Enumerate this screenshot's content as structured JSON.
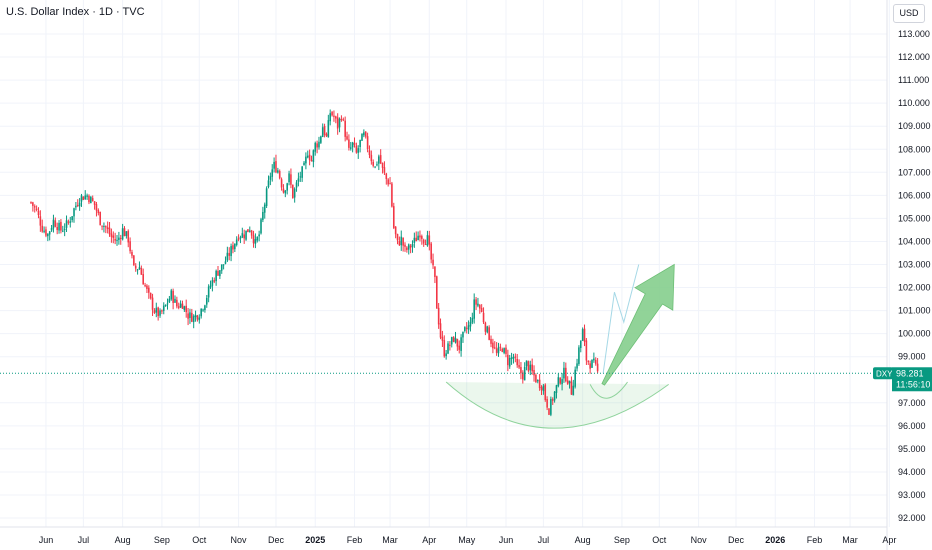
{
  "header": {
    "title": "U.S. Dollar Index · 1D · TVC",
    "currency": "USD"
  },
  "price_tag": {
    "symbol": "DXY",
    "price": "98.281",
    "countdown": "11:56:10",
    "color": "#089981"
  },
  "colors": {
    "up": "#089981",
    "down": "#f23645",
    "curve": "#8fd39c",
    "arrow": "#7ecb86",
    "path": "#a5d8e6"
  },
  "chart_data": {
    "type": "candlestick",
    "title": "U.S. Dollar Index · 1D · TVC",
    "ylabel": "USD",
    "ylim": [
      91.5,
      114
    ],
    "y_ticks": [
      "113.000",
      "112.000",
      "111.000",
      "110.000",
      "109.000",
      "108.000",
      "107.000",
      "106.000",
      "105.000",
      "104.000",
      "103.000",
      "102.000",
      "101.000",
      "100.000",
      "99.000",
      "97.000",
      "96.000",
      "95.000",
      "94.000",
      "93.000",
      "92.000"
    ],
    "x_ticks": [
      {
        "label": "Jun",
        "t": 0.4
      },
      {
        "label": "Jul",
        "t": 1.4
      },
      {
        "label": "Aug",
        "t": 2.45
      },
      {
        "label": "Sep",
        "t": 3.5
      },
      {
        "label": "Oct",
        "t": 4.5
      },
      {
        "label": "Nov",
        "t": 5.55
      },
      {
        "label": "Dec",
        "t": 6.55
      },
      {
        "label": "2025",
        "t": 7.6,
        "bold": true
      },
      {
        "label": "Feb",
        "t": 8.65
      },
      {
        "label": "Mar",
        "t": 9.6
      },
      {
        "label": "Apr",
        "t": 10.65
      },
      {
        "label": "May",
        "t": 11.65
      },
      {
        "label": "Jun",
        "t": 12.7
      },
      {
        "label": "Jul",
        "t": 13.7
      },
      {
        "label": "Aug",
        "t": 14.75
      },
      {
        "label": "Sep",
        "t": 15.8
      },
      {
        "label": "Oct",
        "t": 16.8
      },
      {
        "label": "Nov",
        "t": 17.85
      },
      {
        "label": "Dec",
        "t": 18.85
      },
      {
        "label": "2026",
        "t": 19.9,
        "bold": true
      },
      {
        "label": "Feb",
        "t": 20.95
      },
      {
        "label": "Mar",
        "t": 21.9
      },
      {
        "label": "Apr",
        "t": 22.95
      }
    ],
    "price_path": [
      [
        0,
        105.7
      ],
      [
        0.15,
        105.3
      ],
      [
        0.3,
        104.6
      ],
      [
        0.45,
        104.3
      ],
      [
        0.6,
        104.9
      ],
      [
        0.8,
        104.5
      ],
      [
        1.0,
        104.8
      ],
      [
        1.15,
        105.4
      ],
      [
        1.3,
        105.9
      ],
      [
        1.5,
        106.0
      ],
      [
        1.7,
        105.6
      ],
      [
        1.85,
        104.9
      ],
      [
        2.0,
        104.6
      ],
      [
        2.15,
        104.2
      ],
      [
        2.3,
        104.0
      ],
      [
        2.45,
        104.5
      ],
      [
        2.6,
        104.1
      ],
      [
        2.75,
        102.8
      ],
      [
        2.9,
        102.9
      ],
      [
        3.0,
        102.3
      ],
      [
        3.15,
        101.6
      ],
      [
        3.3,
        101.0
      ],
      [
        3.45,
        100.8
      ],
      [
        3.6,
        101.2
      ],
      [
        3.75,
        101.7
      ],
      [
        3.9,
        101.2
      ],
      [
        4.05,
        101.3
      ],
      [
        4.2,
        100.8
      ],
      [
        4.35,
        100.7
      ],
      [
        4.5,
        100.9
      ],
      [
        4.65,
        101.4
      ],
      [
        4.8,
        102.1
      ],
      [
        4.95,
        102.6
      ],
      [
        5.1,
        102.9
      ],
      [
        5.25,
        103.3
      ],
      [
        5.4,
        103.8
      ],
      [
        5.55,
        104.3
      ],
      [
        5.7,
        104.3
      ],
      [
        5.85,
        104.6
      ],
      [
        6.0,
        103.9
      ],
      [
        6.1,
        104.3
      ],
      [
        6.2,
        105.2
      ],
      [
        6.3,
        106.1
      ],
      [
        6.4,
        106.9
      ],
      [
        6.5,
        107.3
      ],
      [
        6.6,
        107.1
      ],
      [
        6.75,
        106.2
      ],
      [
        6.9,
        106.8
      ],
      [
        7.0,
        106.0
      ],
      [
        7.15,
        106.7
      ],
      [
        7.3,
        107.2
      ],
      [
        7.4,
        107.9
      ],
      [
        7.5,
        107.5
      ],
      [
        7.6,
        108.2
      ],
      [
        7.7,
        108.3
      ],
      [
        7.8,
        109.0
      ],
      [
        7.9,
        108.5
      ],
      [
        8.0,
        109.6
      ],
      [
        8.1,
        109.4
      ],
      [
        8.2,
        109.0
      ],
      [
        8.3,
        109.5
      ],
      [
        8.4,
        108.7
      ],
      [
        8.5,
        107.9
      ],
      [
        8.6,
        108.2
      ],
      [
        8.7,
        107.8
      ],
      [
        8.8,
        108.3
      ],
      [
        8.9,
        108.6
      ],
      [
        9.0,
        108.1
      ],
      [
        9.1,
        107.6
      ],
      [
        9.2,
        107.2
      ],
      [
        9.3,
        107.7
      ],
      [
        9.4,
        107.1
      ],
      [
        9.5,
        106.7
      ],
      [
        9.6,
        106.5
      ],
      [
        9.7,
        104.6
      ],
      [
        9.8,
        103.9
      ],
      [
        9.9,
        104.1
      ],
      [
        10.0,
        103.6
      ],
      [
        10.1,
        103.7
      ],
      [
        10.25,
        104.0
      ],
      [
        10.4,
        104.4
      ],
      [
        10.5,
        104.1
      ],
      [
        10.6,
        104.1
      ],
      [
        10.7,
        103.2
      ],
      [
        10.8,
        102.3
      ],
      [
        10.85,
        101.2
      ],
      [
        10.95,
        99.9
      ],
      [
        11.05,
        99.2
      ],
      [
        11.15,
        99.4
      ],
      [
        11.3,
        99.8
      ],
      [
        11.45,
        99.4
      ],
      [
        11.6,
        100.1
      ],
      [
        11.75,
        100.4
      ],
      [
        11.85,
        101.3
      ],
      [
        11.95,
        101.3
      ],
      [
        12.05,
        100.9
      ],
      [
        12.15,
        100.3
      ],
      [
        12.3,
        99.7
      ],
      [
        12.45,
        99.1
      ],
      [
        12.6,
        99.4
      ],
      [
        12.75,
        98.8
      ],
      [
        12.9,
        99.0
      ],
      [
        13.0,
        98.5
      ],
      [
        13.15,
        98.2
      ],
      [
        13.25,
        98.7
      ],
      [
        13.4,
        98.3
      ],
      [
        13.55,
        97.9
      ],
      [
        13.7,
        97.7
      ],
      [
        13.75,
        97.2
      ],
      [
        13.85,
        96.7
      ],
      [
        13.95,
        97.2
      ],
      [
        14.1,
        97.9
      ],
      [
        14.25,
        98.3
      ],
      [
        14.35,
        98.0
      ],
      [
        14.45,
        97.5
      ],
      [
        14.55,
        98.4
      ],
      [
        14.65,
        99.3
      ],
      [
        14.75,
        100.1
      ],
      [
        14.85,
        98.9
      ],
      [
        14.95,
        98.7
      ],
      [
        15.05,
        98.7
      ],
      [
        15.15,
        98.3
      ]
    ],
    "projection": {
      "thin_path": [
        [
          15.3,
          98.3
        ],
        [
          15.6,
          101.8
        ],
        [
          15.85,
          100.5
        ],
        [
          16.25,
          103.0
        ]
      ],
      "arrow": [
        [
          15.3,
          97.8
        ],
        [
          17.2,
          103.0
        ]
      ]
    },
    "patterns": {
      "large_cup": {
        "from": [
          11.1,
          97.9
        ],
        "bottom": [
          13.95,
          95.9
        ],
        "to": [
          17.05,
          97.8
        ]
      },
      "small_cup": {
        "from": [
          14.95,
          97.8
        ],
        "bottom": [
          15.4,
          97.2
        ],
        "to": [
          15.95,
          97.9
        ]
      }
    },
    "last_price": 98.281
  }
}
